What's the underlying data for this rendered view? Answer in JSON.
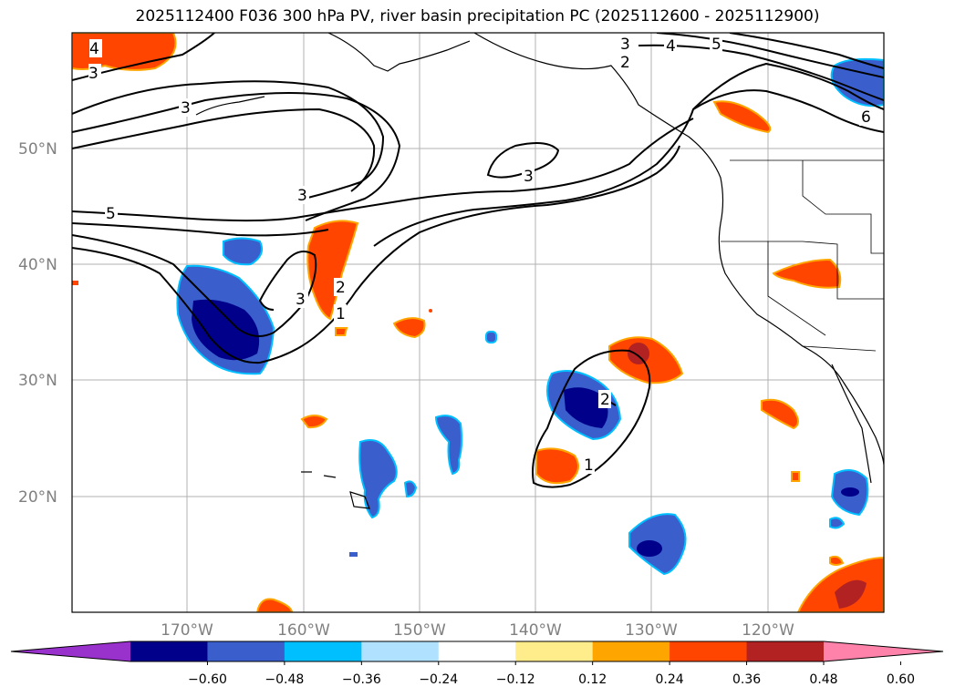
{
  "title": "2025112400 F036 300 hPa PV, river basin precipitation PC (2025112600 - 2025112900)",
  "lat_labels": [
    "50°N",
    "40°N",
    "30°N",
    "20°N"
  ],
  "lon_labels": [
    "170°W",
    "160°W",
    "150°W",
    "140°W",
    "130°W",
    "120°W"
  ],
  "contour_labels": [
    "3",
    "4",
    "3",
    "4",
    "5",
    "3",
    "5",
    "3",
    "3",
    "2",
    "1",
    "3",
    "2",
    "1",
    "6",
    "2"
  ],
  "colorbar": {
    "colors": [
      "#9932CC",
      "#00008B",
      "#3A5FCD",
      "#00BFFF",
      "#B0E2FF",
      "#FFFFFF",
      "#FFEC8B",
      "#FFA500",
      "#FF4500",
      "#B22222",
      "#FF82AB"
    ],
    "tick_labels": [
      "−0.60",
      "−0.48",
      "−0.36",
      "−0.24",
      "−0.12",
      "0.12",
      "0.24",
      "0.36",
      "0.48",
      "0.60"
    ]
  }
}
